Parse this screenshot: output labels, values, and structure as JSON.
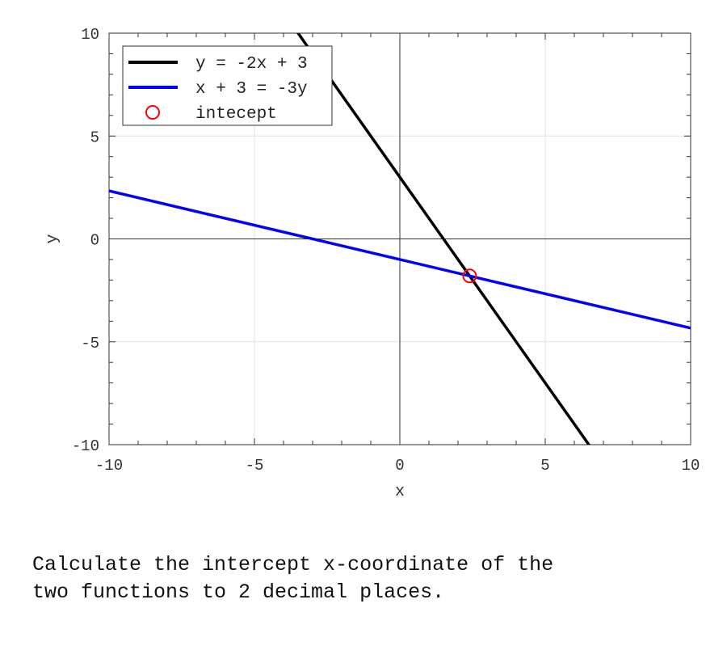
{
  "chart_data": {
    "type": "line",
    "xlabel": "x",
    "ylabel": "y",
    "xlim": [
      -10,
      10
    ],
    "ylim": [
      -10,
      10
    ],
    "xticks": [
      -10,
      -5,
      0,
      5,
      10
    ],
    "yticks": [
      -10,
      -5,
      0,
      5,
      10
    ],
    "grid": true,
    "legend_position": "top-left",
    "series": [
      {
        "name": "y = -2x + 3",
        "slope": -2,
        "intercept": 3,
        "color": "#000000"
      },
      {
        "name": "x + 3 = -3y",
        "slope": -0.3333333,
        "intercept": -1,
        "color": "#0000ff"
      }
    ],
    "points": [
      {
        "name": "intecept",
        "x": 2.4,
        "y": -1.8,
        "color": "#ff0000"
      }
    ]
  },
  "question": "Calculate the intercept x-coordinate of the\ntwo functions to 2 decimal places."
}
